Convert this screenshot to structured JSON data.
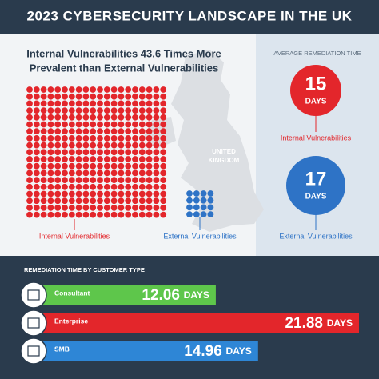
{
  "header": {
    "title": "2023 CYBERSECURITY LANDSCAPE IN THE UK"
  },
  "comparison": {
    "title_lines": [
      "Internal Vulnerabilities 43.6 Times More",
      "Prevalent than External Vulnerabilities"
    ],
    "internal_label": "Internal Vulnerabilities",
    "external_label": "External Vulnerabilities",
    "map_label_lines": [
      "UNITED",
      "KINGDOM"
    ]
  },
  "remediation": {
    "title": "AVERAGE REMEDIATION TIME",
    "items": [
      {
        "value": 15,
        "unit": "DAYS",
        "label": "Internal Vulnerabilities",
        "color": "#e3262b"
      },
      {
        "value": 17,
        "unit": "DAYS",
        "label": "External Vulnerabilities",
        "color": "#2e73c6"
      }
    ]
  },
  "customers": {
    "title": "REMEDIATION TIME BY CUSTOMER TYPE",
    "unit": "DAYS",
    "bars": [
      {
        "name": "Consultant",
        "value": 12.06,
        "color": "#5ec64b"
      },
      {
        "name": "Enterprise",
        "value": 21.88,
        "color": "#e3262b"
      },
      {
        "name": "SMB",
        "value": 14.96,
        "color": "#2e86d6"
      }
    ]
  }
}
